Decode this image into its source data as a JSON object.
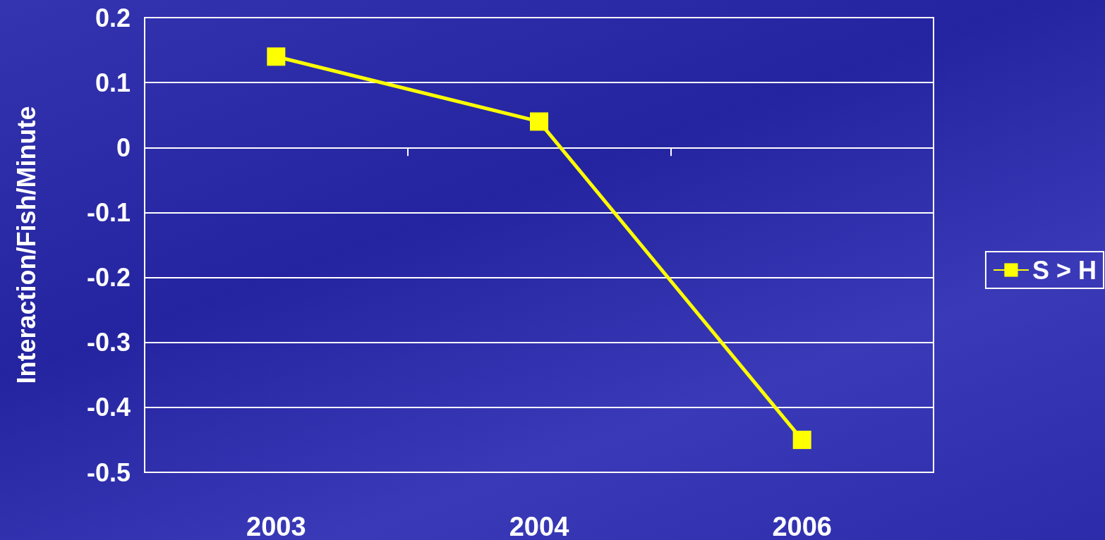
{
  "chart_data": {
    "type": "line",
    "ylabel": "Interaction/Fish/Minute",
    "categories": [
      "2003",
      "2004",
      "2006"
    ],
    "series": [
      {
        "name": "S > H",
        "color": "#ffff00",
        "values": [
          0.14,
          0.04,
          -0.45
        ]
      }
    ],
    "ylim": [
      -0.5,
      0.2
    ],
    "yticks": [
      -0.5,
      -0.4,
      -0.3,
      -0.2,
      -0.1,
      0,
      0.1,
      0.2
    ],
    "grid": "y",
    "legend": "right",
    "marker": "square",
    "line_style": "solid"
  }
}
